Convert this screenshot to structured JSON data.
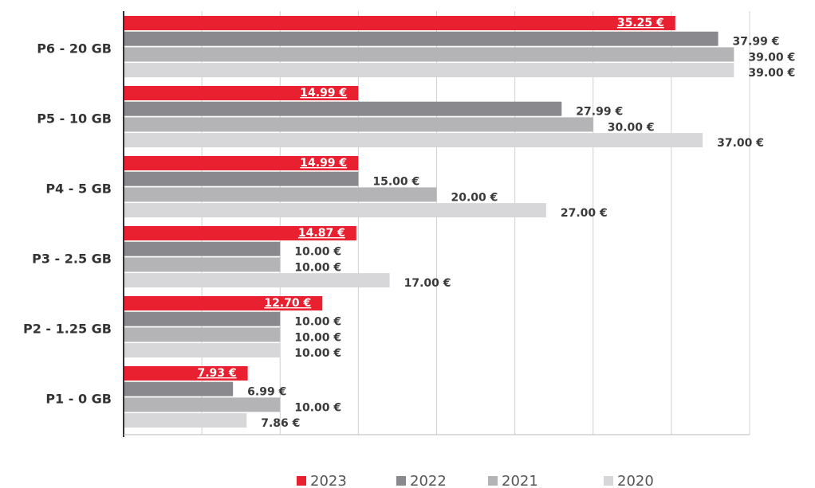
{
  "chart_data": {
    "type": "barh",
    "categories": [
      "P6 - 20 GB",
      "P5 - 10 GB",
      "P4 - 5 GB",
      "P3 - 2.5 GB",
      "P2 - 1.25 GB",
      "P1 - 0 GB"
    ],
    "series": [
      {
        "name": "2023",
        "color": "#e8202f",
        "values": [
          35.25,
          14.99,
          14.99,
          14.87,
          12.7,
          7.93
        ],
        "value_labels": [
          "35.25 €",
          "14.99 €",
          "14.99 €",
          "14.87 €",
          "12.70 €",
          "7.93 €"
        ]
      },
      {
        "name": "2022",
        "color": "#8a8a8e",
        "values": [
          37.99,
          27.99,
          15.0,
          10.0,
          10.0,
          6.99
        ],
        "value_labels": [
          "37.99 €",
          "27.99 €",
          "15.00 €",
          "10.00 €",
          "10.00 €",
          "6.99 €"
        ]
      },
      {
        "name": "2021",
        "color": "#b4b4b6",
        "values": [
          39.0,
          30.0,
          20.0,
          10.0,
          10.0,
          10.0
        ],
        "value_labels": [
          "39.00 €",
          "30.00 €",
          "20.00 €",
          "10.00 €",
          "10.00 €",
          "10.00 €"
        ]
      },
      {
        "name": "2020",
        "color": "#d7d7d9",
        "values": [
          39.0,
          37.0,
          27.0,
          17.0,
          10.0,
          7.86
        ],
        "value_labels": [
          "39.00 €",
          "37.00 €",
          "27.00 €",
          "17.00 €",
          "10.00 €",
          "7.86 €"
        ]
      }
    ],
    "xlim": [
      0,
      40
    ],
    "xticks": [
      0,
      5,
      10,
      15,
      20,
      25,
      30,
      35,
      40
    ],
    "grid": true,
    "legend": "bottom"
  }
}
